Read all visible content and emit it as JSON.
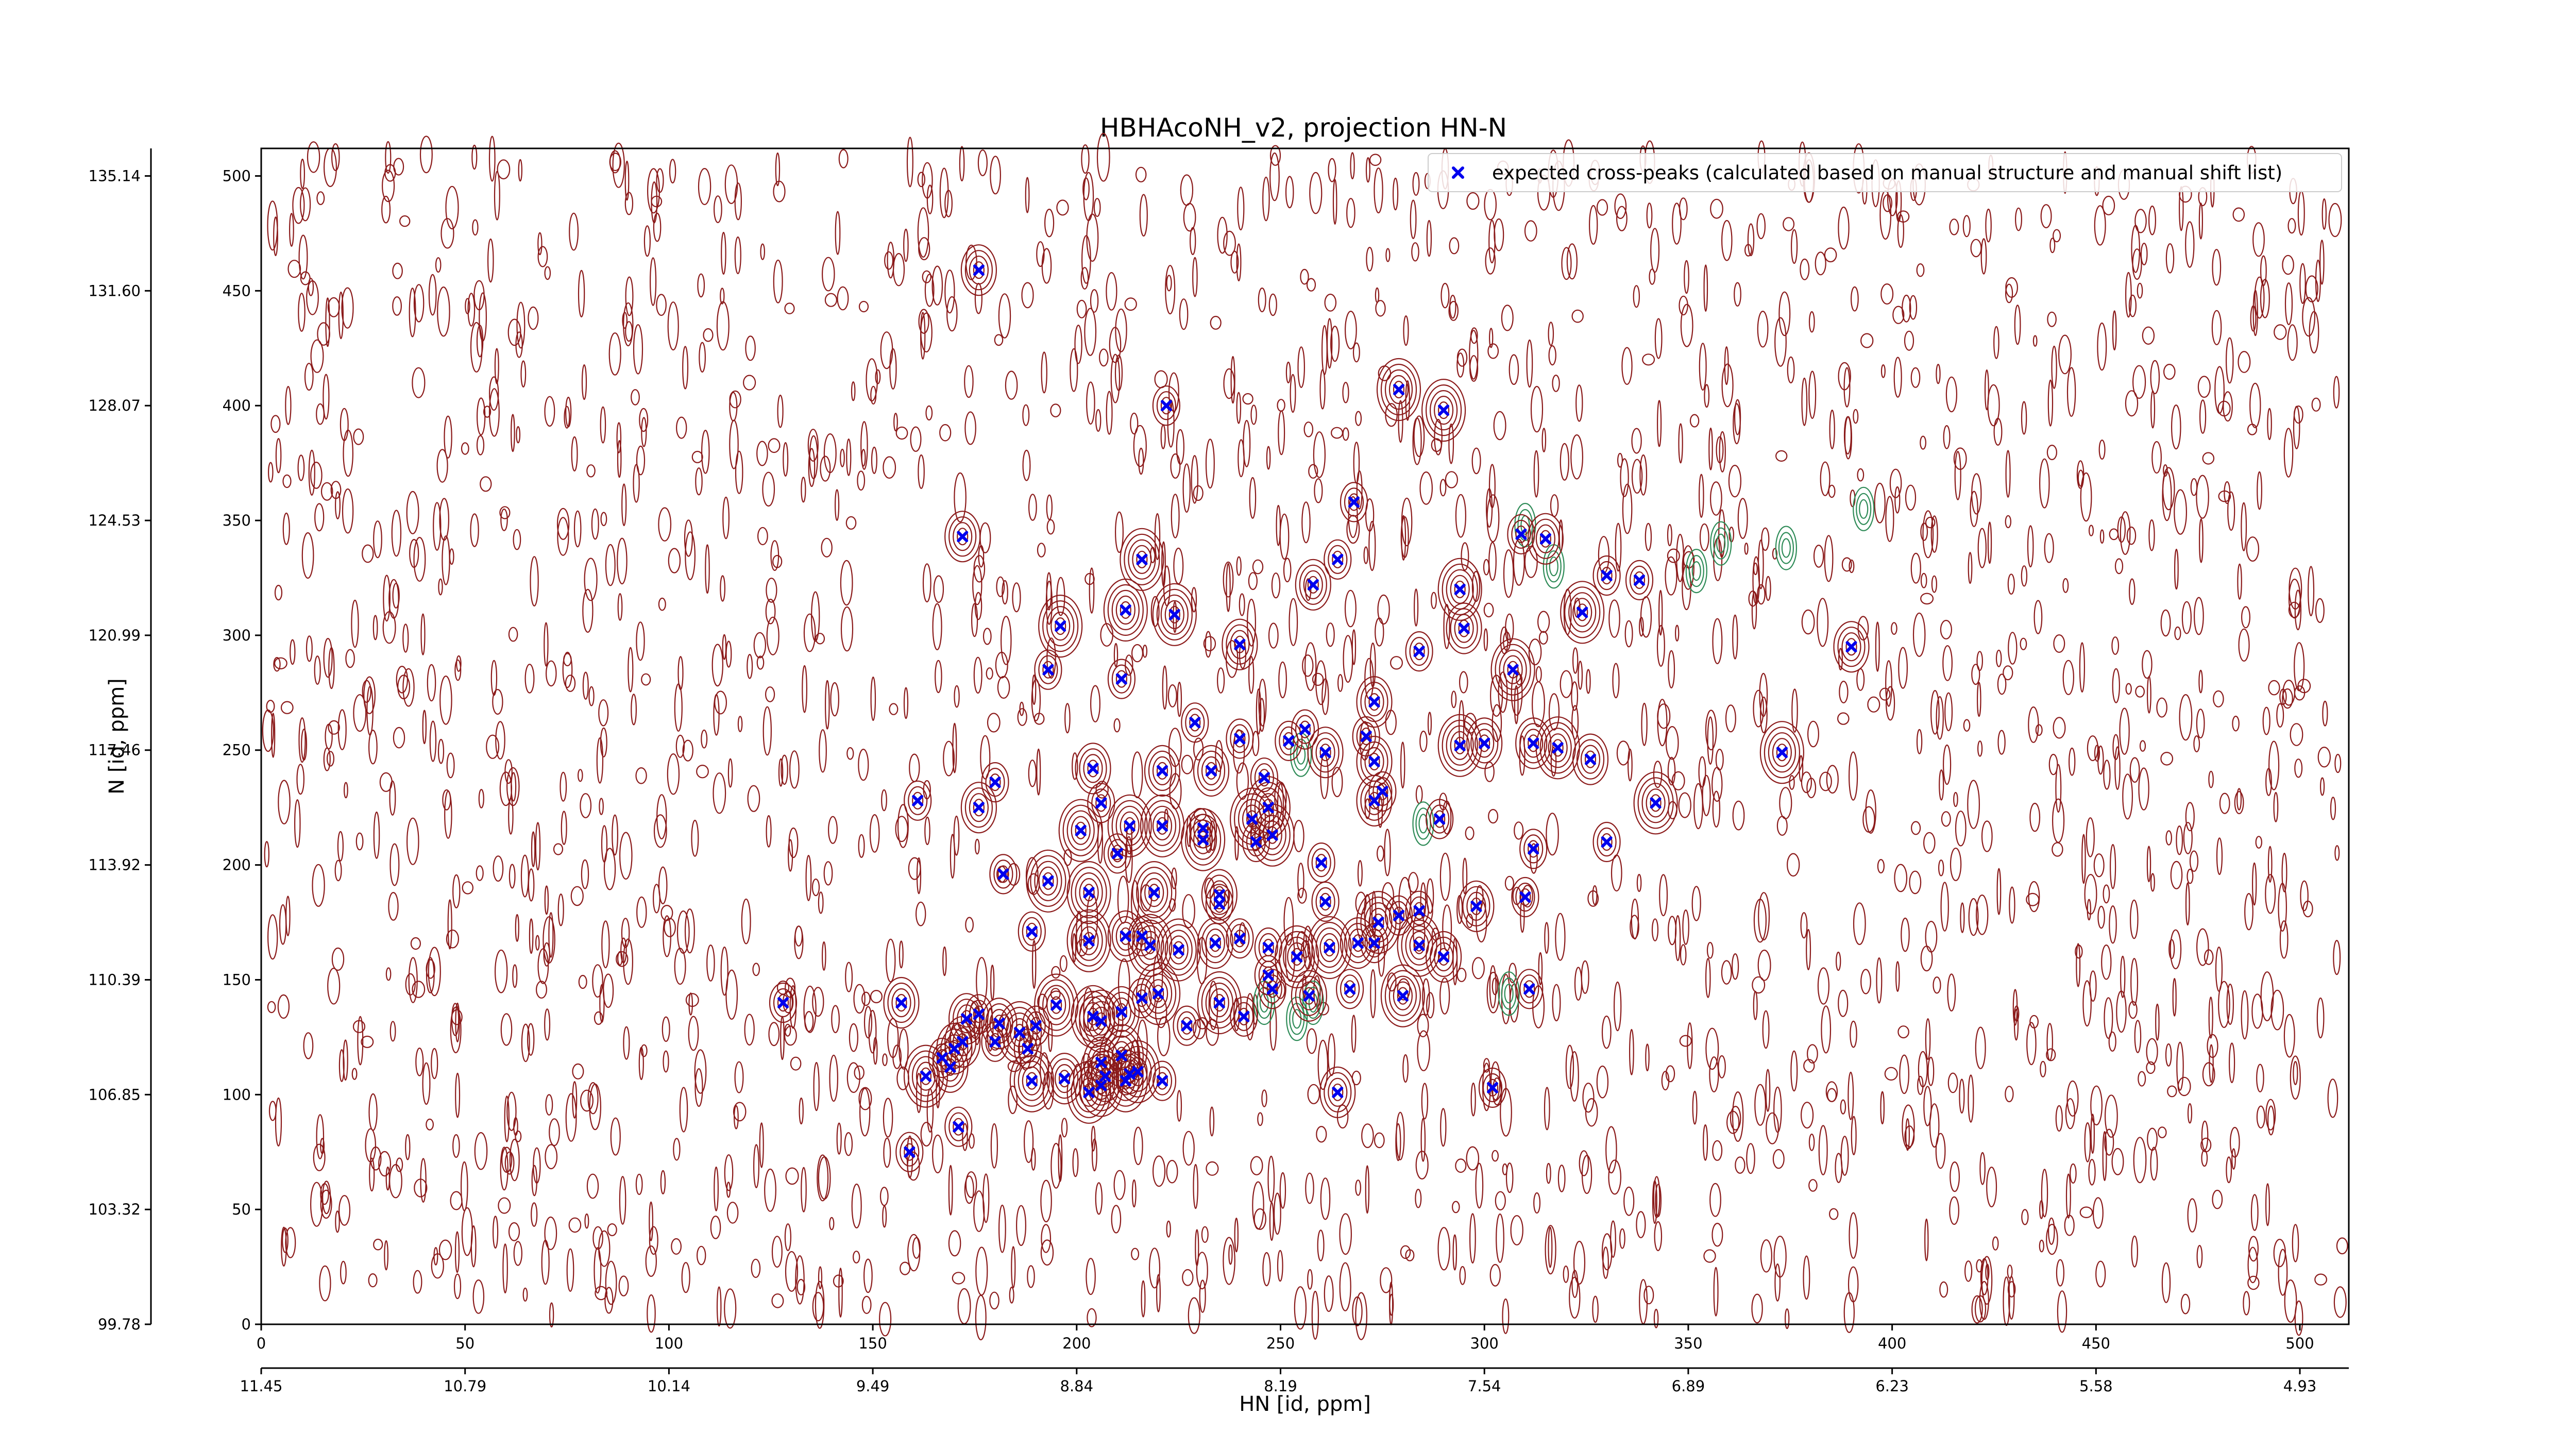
{
  "chart_data": {
    "type": "scatter",
    "title": "HBHAcoNH_v2, projection HN-N",
    "xlabel": "HN [id, ppm]",
    "ylabel": "N [id, ppm]",
    "xlim": [
      0,
      512
    ],
    "ylim": [
      0,
      512
    ],
    "x_ticks": [
      0,
      50,
      100,
      150,
      200,
      250,
      300,
      350,
      400,
      450,
      500
    ],
    "y_ticks": [
      0,
      50,
      100,
      150,
      200,
      250,
      300,
      350,
      400,
      450,
      500
    ],
    "ppm_x_ticks": [
      "11.45",
      "10.79",
      "10.14",
      "9.49",
      "8.84",
      "8.19",
      "7.54",
      "6.89",
      "6.23",
      "5.58",
      "4.93"
    ],
    "ppm_y_ticks": [
      "135.14",
      "131.60",
      "128.07",
      "124.53",
      "120.99",
      "117.46",
      "113.92",
      "110.39",
      "106.85",
      "103.32",
      "99.78"
    ],
    "legend": {
      "position": "top-right"
    },
    "colors": {
      "positive_contour": "#8b1a1a",
      "negative_contour": "#2e8b57",
      "marker": "#0000ee"
    },
    "series": [
      {
        "name": "expected cross-peaks (calculated based on manual structure and manual shift list)",
        "marker": "x",
        "points": [
          [
            176,
            459
          ],
          [
            222,
            400
          ],
          [
            279,
            407
          ],
          [
            290,
            398
          ],
          [
            268,
            358
          ],
          [
            172,
            343
          ],
          [
            216,
            333
          ],
          [
            264,
            333
          ],
          [
            258,
            322
          ],
          [
            309,
            344
          ],
          [
            315,
            342
          ],
          [
            330,
            326
          ],
          [
            338,
            324
          ],
          [
            294,
            320
          ],
          [
            324,
            310
          ],
          [
            295,
            303
          ],
          [
            196,
            304
          ],
          [
            212,
            311
          ],
          [
            224,
            309
          ],
          [
            240,
            296
          ],
          [
            193,
            285
          ],
          [
            211,
            281
          ],
          [
            284,
            293
          ],
          [
            307,
            285
          ],
          [
            273,
            271
          ],
          [
            390,
            295
          ],
          [
            229,
            262
          ],
          [
            240,
            255
          ],
          [
            256,
            259
          ],
          [
            252,
            254
          ],
          [
            261,
            249
          ],
          [
            271,
            256
          ],
          [
            294,
            252
          ],
          [
            300,
            253
          ],
          [
            312,
            253
          ],
          [
            318,
            251
          ],
          [
            326,
            246
          ],
          [
            373,
            249
          ],
          [
            273,
            245
          ],
          [
            221,
            241
          ],
          [
            233,
            241
          ],
          [
            246,
            238
          ],
          [
            180,
            236
          ],
          [
            204,
            242
          ],
          [
            161,
            228
          ],
          [
            176,
            225
          ],
          [
            206,
            227
          ],
          [
            247,
            225
          ],
          [
            273,
            228
          ],
          [
            275,
            232
          ],
          [
            221,
            217
          ],
          [
            201,
            215
          ],
          [
            213,
            217
          ],
          [
            243,
            220
          ],
          [
            289,
            220
          ],
          [
            231,
            211
          ],
          [
            231,
            216
          ],
          [
            248,
            213
          ],
          [
            244,
            210
          ],
          [
            342,
            227
          ],
          [
            330,
            210
          ],
          [
            312,
            207
          ],
          [
            182,
            196
          ],
          [
            193,
            193
          ],
          [
            210,
            205
          ],
          [
            260,
            201
          ],
          [
            203,
            188
          ],
          [
            219,
            188
          ],
          [
            235,
            187
          ],
          [
            235,
            183
          ],
          [
            261,
            184
          ],
          [
            279,
            178
          ],
          [
            298,
            182
          ],
          [
            274,
            175
          ],
          [
            284,
            180
          ],
          [
            310,
            186
          ],
          [
            189,
            171
          ],
          [
            203,
            167
          ],
          [
            212,
            169
          ],
          [
            216,
            169
          ],
          [
            218,
            165
          ],
          [
            225,
            163
          ],
          [
            234,
            166
          ],
          [
            240,
            168
          ],
          [
            247,
            164
          ],
          [
            254,
            160
          ],
          [
            262,
            164
          ],
          [
            269,
            166
          ],
          [
            273,
            166
          ],
          [
            284,
            165
          ],
          [
            290,
            160
          ],
          [
            247,
            152
          ],
          [
            248,
            146
          ],
          [
            257,
            143
          ],
          [
            267,
            146
          ],
          [
            280,
            143
          ],
          [
            311,
            146
          ],
          [
            235,
            140
          ],
          [
            128,
            140
          ],
          [
            157,
            140
          ],
          [
            195,
            139
          ],
          [
            216,
            142
          ],
          [
            220,
            144
          ],
          [
            173,
            133
          ],
          [
            176,
            135
          ],
          [
            181,
            131
          ],
          [
            190,
            130
          ],
          [
            204,
            134
          ],
          [
            206,
            132
          ],
          [
            211,
            136
          ],
          [
            241,
            134
          ],
          [
            167,
            116
          ],
          [
            170,
            120
          ],
          [
            172,
            123
          ],
          [
            180,
            123
          ],
          [
            186,
            127
          ],
          [
            188,
            120
          ],
          [
            206,
            114
          ],
          [
            211,
            117
          ],
          [
            213,
            109
          ],
          [
            215,
            110
          ],
          [
            206,
            104
          ],
          [
            207,
            108
          ],
          [
            163,
            108
          ],
          [
            169,
            112
          ],
          [
            189,
            106
          ],
          [
            203,
            101
          ],
          [
            212,
            106
          ],
          [
            221,
            106
          ],
          [
            264,
            101
          ],
          [
            171,
            86
          ],
          [
            159,
            75
          ],
          [
            197,
            107
          ],
          [
            302,
            103
          ],
          [
            227,
            130
          ]
        ]
      }
    ]
  }
}
